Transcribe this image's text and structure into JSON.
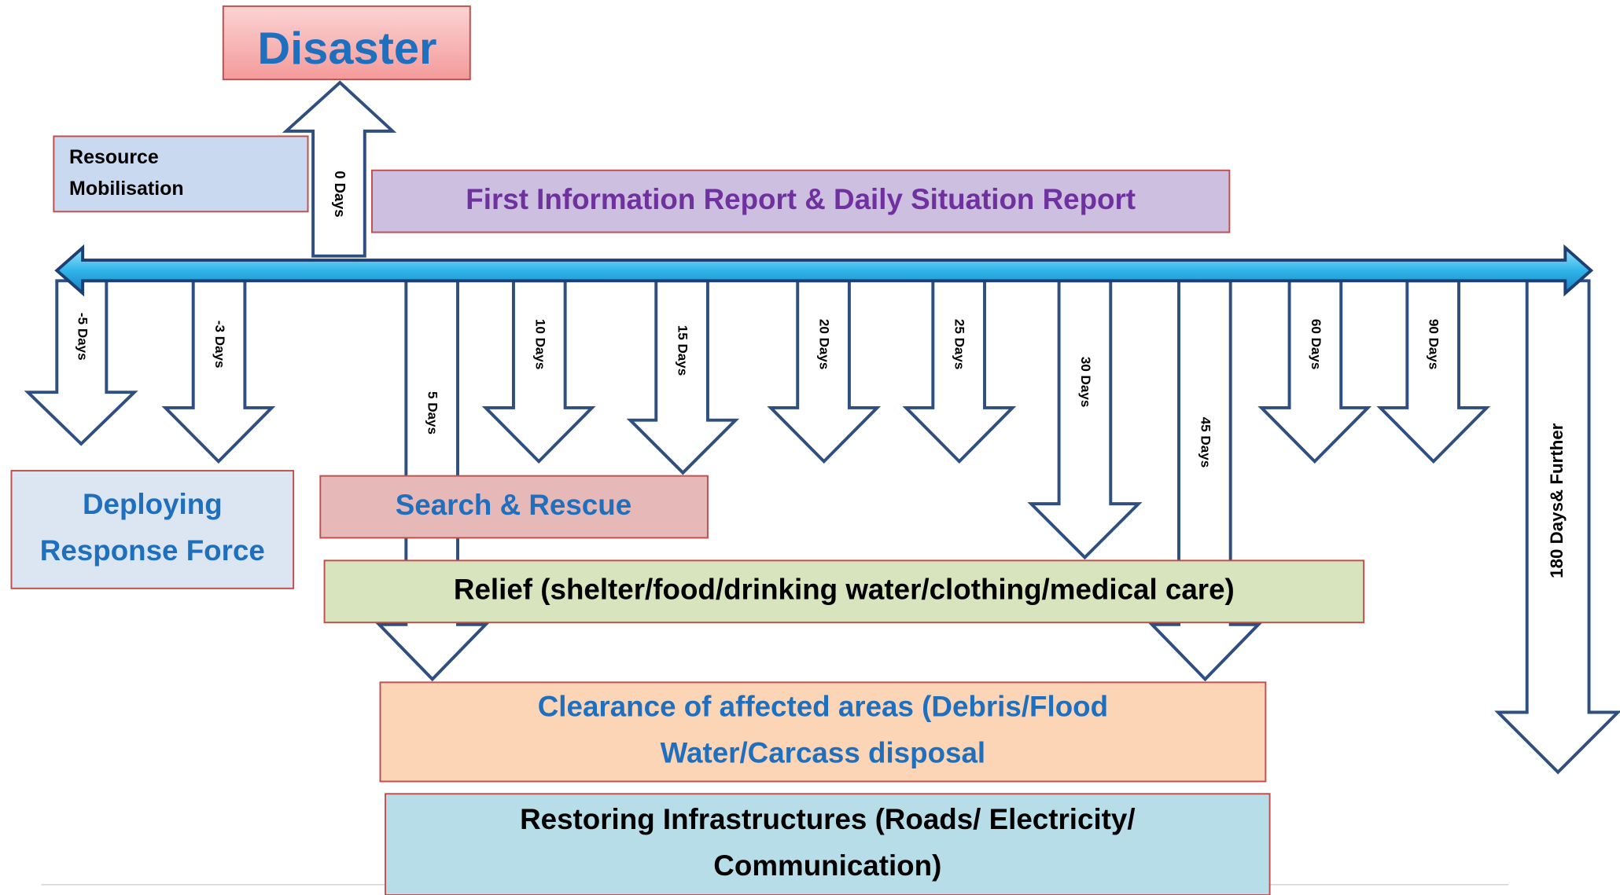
{
  "title": "Disaster",
  "timeline": {
    "up_label": "0 Days",
    "down_labels": [
      "-5 Days",
      "-3 Days",
      "5 Days",
      "10 Days",
      "15 Days",
      "20 Days",
      "25 Days",
      "30 Days",
      "45 Days",
      "60 Days",
      "90 Days",
      "180 Days& Further"
    ]
  },
  "boxes": [
    {
      "lines": [
        "Resource",
        "Mobilisation"
      ]
    },
    {
      "lines": [
        "First Information Report & Daily Situation Report"
      ]
    },
    {
      "lines": [
        "Deploying",
        "Response Force"
      ]
    },
    {
      "lines": [
        "Search & Rescue"
      ]
    },
    {
      "lines": [
        "Relief (shelter/food/drinking water/clothing/medical care)"
      ]
    },
    {
      "lines": [
        "Clearance of affected areas (Debris/Flood",
        "Water/Carcass disposal"
      ]
    },
    {
      "lines": [
        "Restoring Infrastructures (Roads/ Electricity/",
        "Communication)"
      ]
    }
  ]
}
